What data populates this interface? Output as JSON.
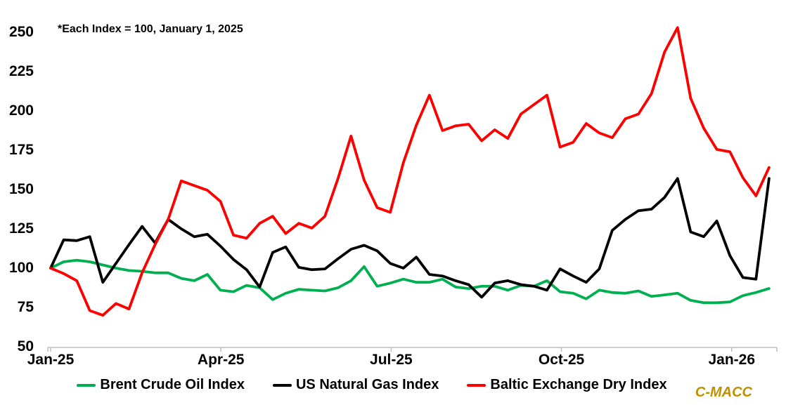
{
  "annotation": "*Each Index = 100, January 1, 2025",
  "watermark": "C-MACC",
  "colors": {
    "brent": "#00B050",
    "natural_gas": "#000000",
    "baltic": "#FF0000",
    "axis": "#BFBFBF",
    "watermark": "#BF9000",
    "text": "#000000",
    "background": "#FFFFFF"
  },
  "chart_data": {
    "type": "line",
    "title": "",
    "xlabel": "",
    "ylabel": "",
    "x_unit": "weeks since Jan 1, 2025",
    "x": [
      0,
      1,
      2,
      3,
      4,
      5,
      6,
      7,
      8,
      9,
      10,
      11,
      12,
      13,
      14,
      15,
      16,
      17,
      18,
      19,
      20,
      21,
      22,
      23,
      24,
      25,
      26,
      27,
      28,
      29,
      30,
      31,
      32,
      33,
      34,
      35,
      36,
      37,
      38,
      39,
      40,
      41,
      42,
      43,
      44,
      45,
      46,
      47,
      48,
      49,
      50,
      51,
      52,
      53,
      54,
      55
    ],
    "series": [
      {
        "name": "Brent Crude Oil Index",
        "color": "#00B050",
        "values": [
          100,
          104,
          105,
          104,
          102,
          100,
          98.5,
          98,
          97,
          97,
          93.5,
          92,
          96,
          86,
          85,
          89,
          87.5,
          80,
          84,
          86.5,
          86,
          85.5,
          87.5,
          92,
          101,
          88.5,
          90.5,
          93,
          91,
          91,
          93,
          88,
          87,
          88.5,
          88.5,
          86,
          89,
          88.5,
          92,
          85,
          84,
          80.5,
          86,
          84.5,
          84,
          85.5,
          82,
          83,
          84,
          79.5,
          78,
          78,
          78.5,
          82.5,
          84.5,
          87
        ]
      },
      {
        "name": "US Natural Gas Index",
        "color": "#000000",
        "values": [
          100,
          118,
          117.5,
          120,
          91,
          103,
          115,
          126.5,
          116,
          131,
          125,
          120,
          121.5,
          114,
          105.5,
          99,
          88,
          110,
          113.5,
          100.5,
          99,
          99.5,
          106,
          112,
          114.5,
          111,
          103,
          100,
          107,
          96,
          95,
          92,
          89.5,
          81.5,
          90.5,
          92,
          89.5,
          88.5,
          86,
          99.5,
          95,
          91,
          99.5,
          124,
          131,
          136.5,
          137.5,
          145,
          157,
          123,
          120,
          130,
          108,
          94,
          93,
          157
        ]
      },
      {
        "name": "Baltic Exchange Dry Index",
        "color": "#FF0000",
        "values": [
          100,
          96.5,
          92,
          73,
          70,
          77.5,
          74,
          97,
          115,
          131,
          155.5,
          152.5,
          149.5,
          142.5,
          121,
          119,
          128.5,
          133,
          122,
          128.5,
          125.5,
          133,
          157,
          184,
          156,
          138.5,
          135.5,
          167,
          191,
          210,
          187.5,
          190.5,
          191.5,
          181,
          188,
          182.5,
          198,
          204,
          210,
          177,
          180,
          192,
          186,
          183,
          195,
          198,
          211,
          237.5,
          253,
          208,
          189,
          175.5,
          174,
          157.5,
          146,
          164
        ]
      }
    ],
    "ylim": [
      50,
      250
    ],
    "yticks": [
      50,
      75,
      100,
      125,
      150,
      175,
      200,
      225,
      250
    ],
    "xticks": [
      {
        "label": "Jan-25",
        "month": 0
      },
      {
        "label": "Apr-25",
        "month": 3
      },
      {
        "label": "Jul-25",
        "month": 6
      },
      {
        "label": "Oct-25",
        "month": 9
      },
      {
        "label": "Jan-26",
        "month": 12
      }
    ],
    "grid": false,
    "legend_position": "bottom"
  }
}
